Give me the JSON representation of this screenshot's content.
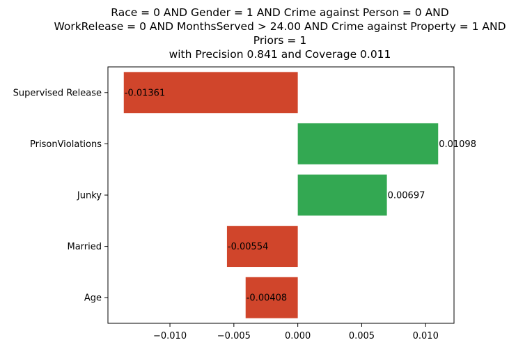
{
  "chart_data": {
    "type": "bar",
    "orientation": "horizontal",
    "title_lines": [
      "Race = 0 AND Gender = 1 AND Crime against Person = 0 AND",
      "WorkRelease = 0 AND MonthsServed > 24.00 AND Crime against Property = 1 AND",
      "Priors = 1",
      "with Precision 0.841 and Coverage 0.011"
    ],
    "categories": [
      "Supervised Release",
      "PrisonViolations",
      "Junky",
      "Married",
      "Age"
    ],
    "values": [
      -0.01361,
      0.01098,
      0.00697,
      -0.00554,
      -0.00408
    ],
    "value_labels": [
      "-0.01361",
      "0.01098",
      "0.00697",
      "-0.00554",
      "-0.00408"
    ],
    "xlim": [
      -0.01485,
      0.01222
    ],
    "xticks": [
      -0.01,
      -0.005,
      0.0,
      0.005,
      0.01
    ],
    "xtick_labels": [
      "−0.010",
      "−0.005",
      "0.000",
      "0.005",
      "0.010"
    ],
    "colors": {
      "positive": "#33a852",
      "negative": "#d0452b"
    },
    "grid": false
  }
}
